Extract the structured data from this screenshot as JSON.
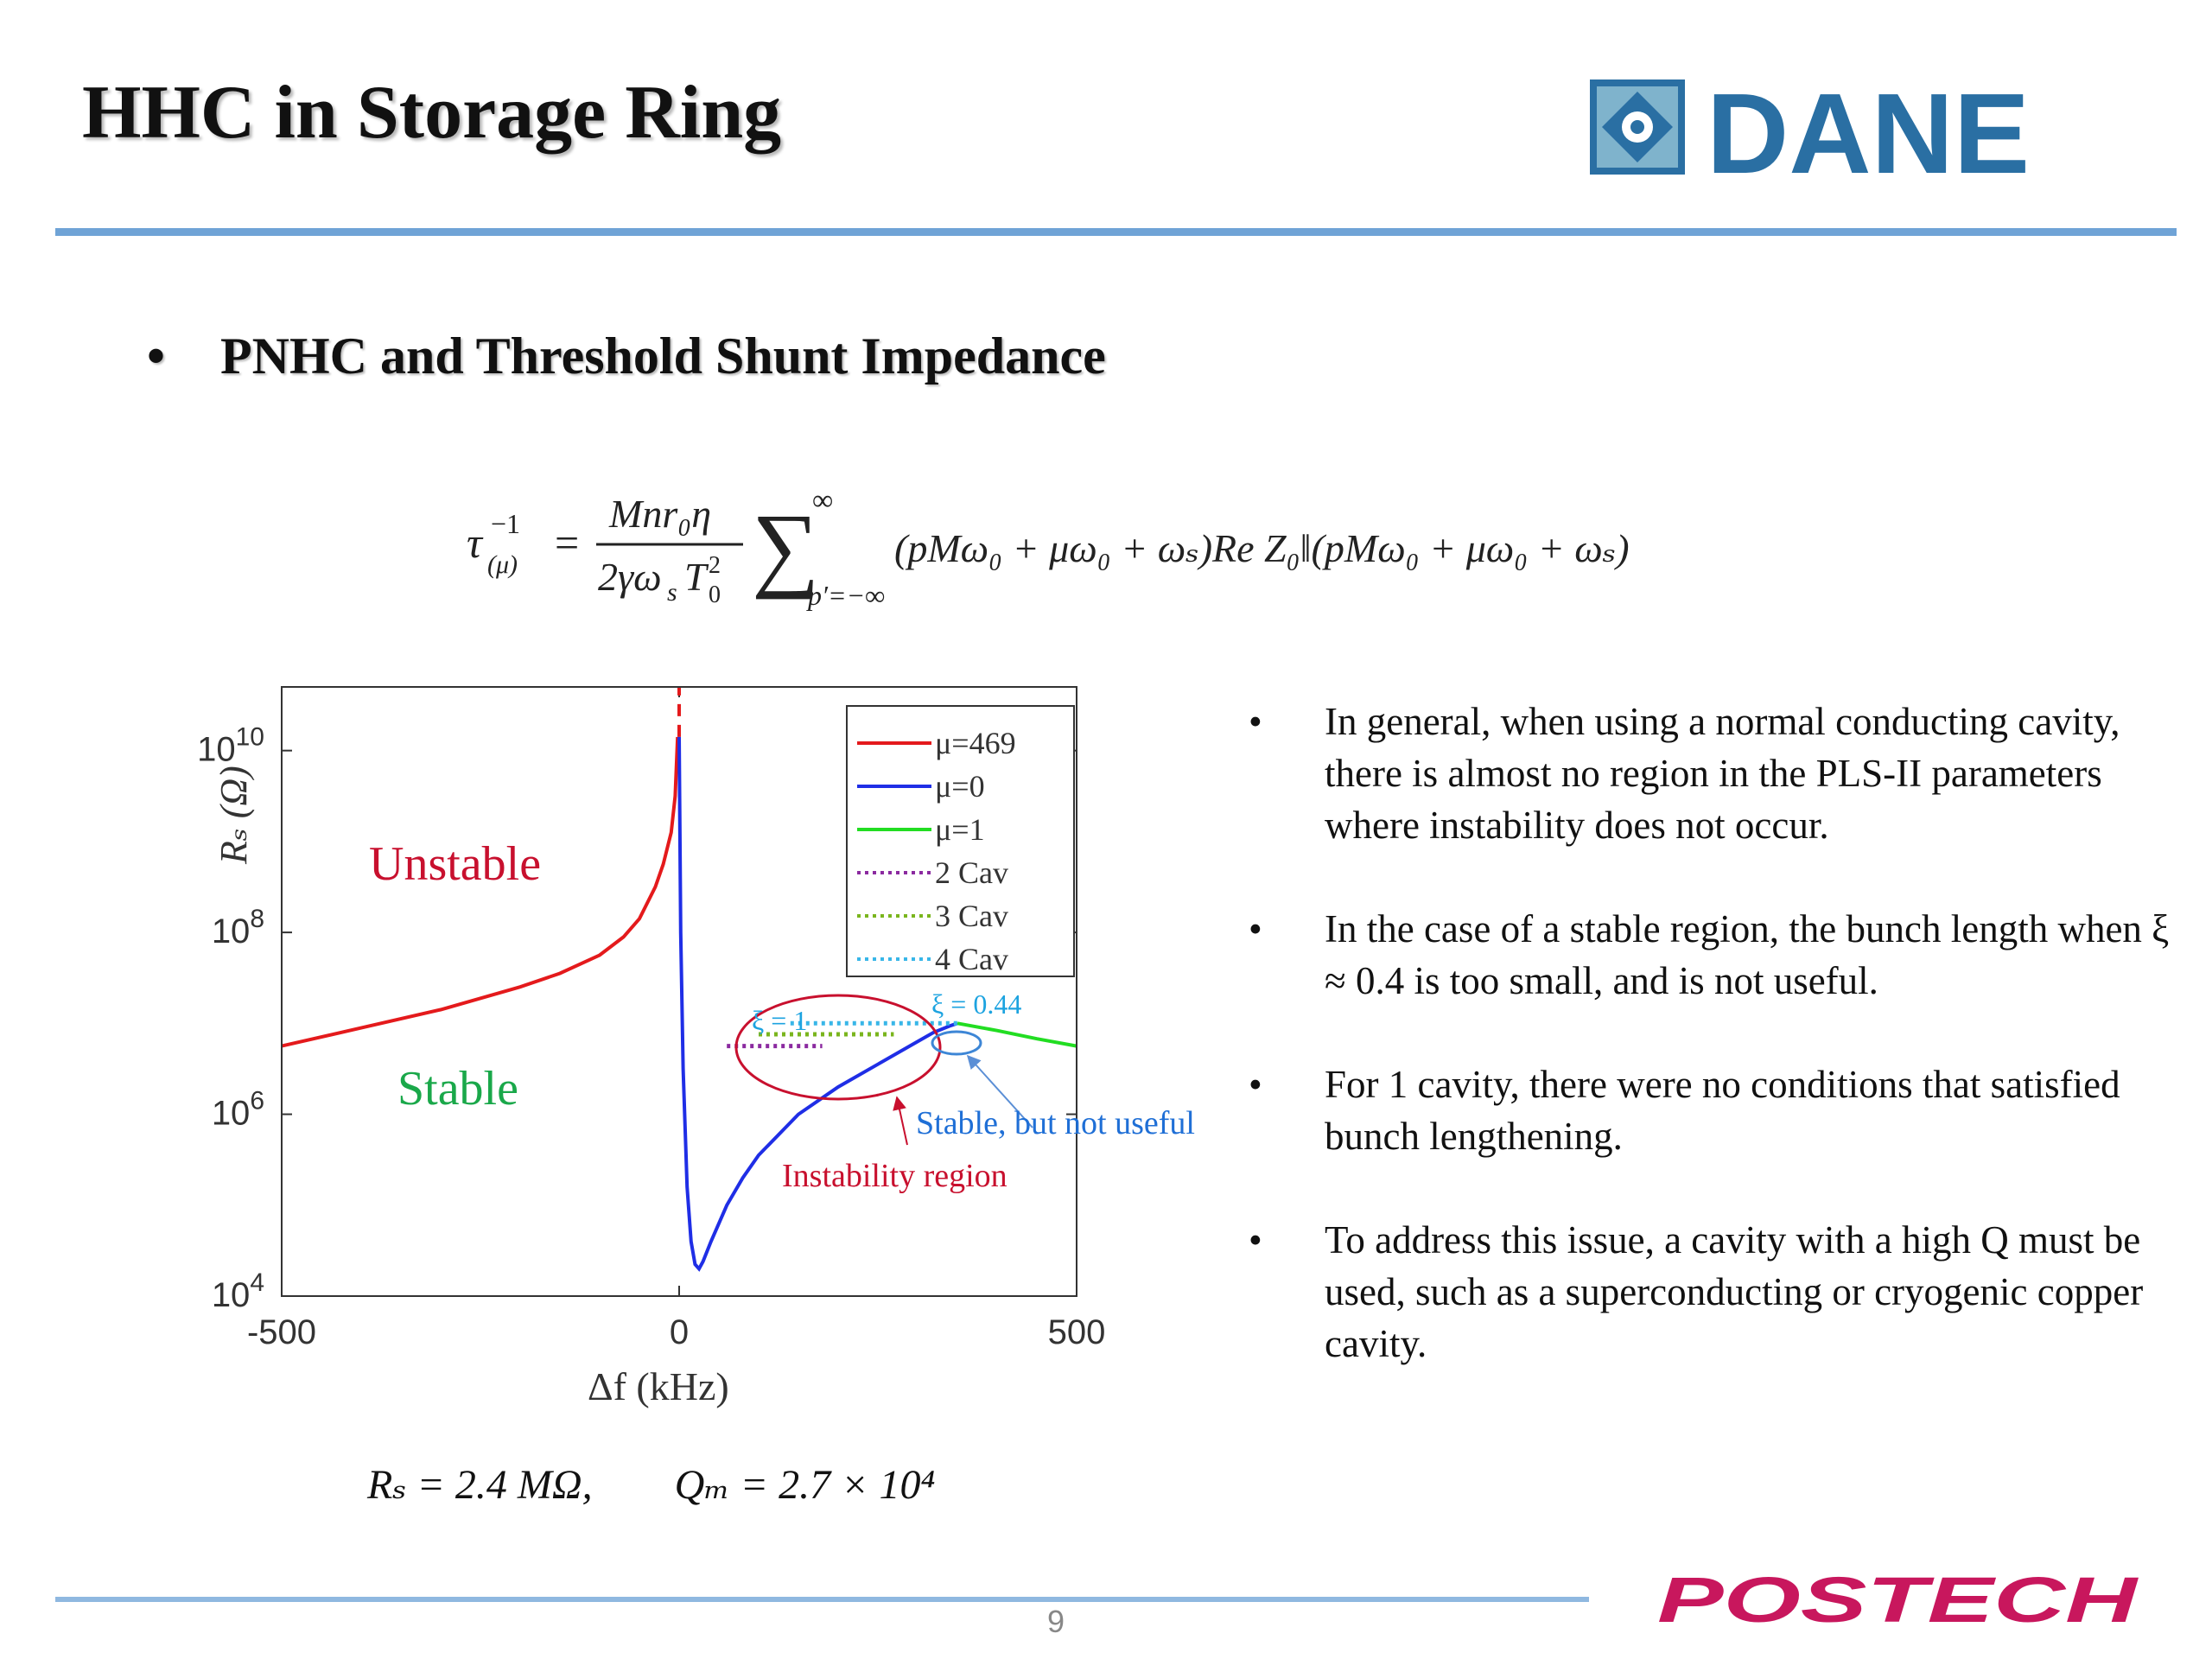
{
  "slide": {
    "title": "HHC in Storage Ring",
    "subtitle_bullet": "•",
    "subtitle": "PNHC and Threshold Shunt Impedance",
    "page_number": "9",
    "accent_color": "#6fa3d6"
  },
  "equation": {
    "lhs": "τ",
    "lhs_sup": "−1",
    "lhs_sub": "(μ)",
    "equals": "=",
    "frac_num": "Mnr₀η",
    "frac_den": "2γω",
    "frac_den2": "T",
    "sum_upper": "∞",
    "sum_lower": "p′=−∞",
    "rhs": "(pMω₀ + μω₀ + ωₛ)Re Z₀‖(pMω₀ + μω₀ + ωₛ)"
  },
  "params": {
    "rs": "Rₛ = 2.4 MΩ,",
    "qm": "Qₘ = 2.7 × 10⁴"
  },
  "notes": {
    "bullet": "•",
    "items": [
      "In general, when using a normal conducting cavity, there is almost no region in the PLS-II parameters where instability does not occur.",
      "In the case of a stable region, the bunch length when ξ ≈ 0.4 is too small, and is not useful.",
      "For 1 cavity, there were no conditions that satisfied bunch lengthening.",
      "To address this issue, a cavity with a high Q must be used, such as a superconducting or cryogenic copper cavity."
    ]
  },
  "logos": {
    "dane_text": "DANE",
    "postech_text": "POSTECH",
    "dane_color": "#2a6fa3",
    "postech_color": "#c8175d"
  },
  "chart_data": {
    "type": "line",
    "xlabel": "Δf  (kHz)",
    "ylabel": "Rₛ  (Ω)",
    "xlim": [
      -500,
      500
    ],
    "ylim_log10": [
      4,
      10.7
    ],
    "x_ticks": [
      "-500",
      "0",
      "500"
    ],
    "y_ticks": [
      {
        "base": "10",
        "exp": "4"
      },
      {
        "base": "10",
        "exp": "6"
      },
      {
        "base": "10",
        "exp": "8"
      },
      {
        "base": "10",
        "exp": "10"
      }
    ],
    "legend_position": "top-right",
    "legend": [
      {
        "label": "μ=469",
        "color": "#e41a1c",
        "style": "solid"
      },
      {
        "label": "μ=0",
        "color": "#1f2ee6",
        "style": "solid"
      },
      {
        "label": "μ=1",
        "color": "#22dd22",
        "style": "solid"
      },
      {
        "label": "2 Cav",
        "color": "#8b2aa0",
        "style": "dotted"
      },
      {
        "label": "3 Cav",
        "color": "#7ab51d",
        "style": "dotted"
      },
      {
        "label": "4 Cav",
        "color": "#38b6e8",
        "style": "dotted"
      }
    ],
    "series": [
      {
        "name": "μ=469",
        "color": "#e41a1c",
        "x": [
          -500,
          -400,
          -300,
          -200,
          -150,
          -100,
          -70,
          -50,
          -30,
          -20,
          -10,
          -5,
          -2
        ],
        "log10_y": [
          6.75,
          6.95,
          7.15,
          7.4,
          7.55,
          7.75,
          7.95,
          8.15,
          8.5,
          8.75,
          9.1,
          9.5,
          10.15
        ]
      },
      {
        "name": "μ=469 (resonance)",
        "color": "#e41a1c",
        "dashed": true,
        "x": [
          0,
          0
        ],
        "log10_y": [
          10.15,
          10.7
        ]
      },
      {
        "name": "μ=0",
        "color": "#1f2ee6",
        "x": [
          0,
          2,
          5,
          10,
          15,
          20,
          25,
          30,
          40,
          60,
          80,
          100,
          150,
          200,
          250,
          300,
          320,
          340,
          350
        ],
        "log10_y": [
          10.15,
          8.0,
          6.5,
          5.2,
          4.6,
          4.35,
          4.3,
          4.38,
          4.6,
          5.0,
          5.3,
          5.55,
          6.0,
          6.3,
          6.55,
          6.8,
          6.9,
          6.97,
          7.0
        ]
      },
      {
        "name": "μ=1",
        "color": "#22dd22",
        "x": [
          350,
          400,
          450,
          500
        ],
        "log10_y": [
          7.0,
          6.92,
          6.83,
          6.75
        ]
      },
      {
        "name": "2 Cav",
        "color": "#8b2aa0",
        "dotted": true,
        "x": [
          60,
          180
        ],
        "log10_y": [
          6.75,
          6.75
        ]
      },
      {
        "name": "3 Cav",
        "color": "#7ab51d",
        "dotted": true,
        "x": [
          100,
          270
        ],
        "log10_y": [
          6.88,
          6.88
        ]
      },
      {
        "name": "4 Cav",
        "color": "#38b6e8",
        "dotted": true,
        "x": [
          140,
          350
        ],
        "log10_y": [
          7.0,
          7.0
        ]
      }
    ],
    "annotations": {
      "unstable": "Unstable",
      "stable": "Stable",
      "xi1": "ξ = 1",
      "xi044": "ξ = 0.44",
      "stable_not_useful": "Stable, but not useful",
      "instability_region": "Instability region",
      "unstable_color": "#c8102e",
      "stable_color": "#1aa84a",
      "xi_color": "#1ca3e0",
      "stable_not_useful_color": "#1f6fd6",
      "instability_color": "#c8102e"
    }
  }
}
